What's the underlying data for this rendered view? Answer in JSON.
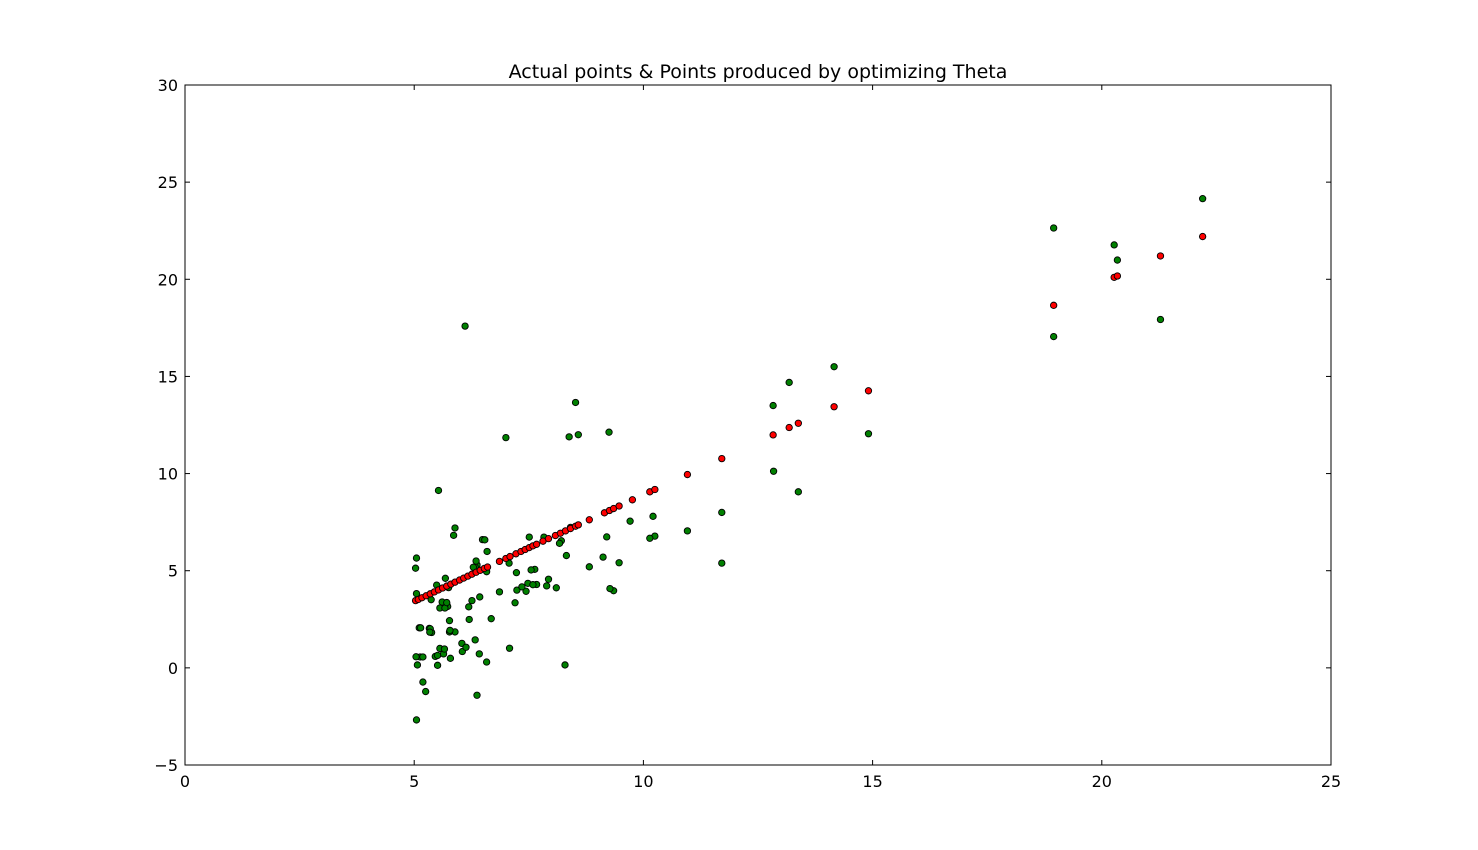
{
  "chart_data": {
    "type": "scatter",
    "title": "Actual points & Points produced by optimizing Theta",
    "xlabel": "",
    "ylabel": "",
    "xlim": [
      0,
      25
    ],
    "ylim": [
      -5,
      30
    ],
    "xticks": [
      0,
      5,
      10,
      15,
      20,
      25
    ],
    "yticks": [
      -5,
      0,
      5,
      10,
      15,
      20,
      25,
      30
    ],
    "xtick_labels": [
      "0",
      "5",
      "10",
      "15",
      "20",
      "25"
    ],
    "ytick_labels": [
      "−5",
      "0",
      "5",
      "10",
      "15",
      "20",
      "25",
      "30"
    ],
    "grid": false,
    "legend": "none",
    "series": [
      {
        "color": "#008000",
        "points": [
          [
            6.11,
            17.59
          ],
          [
            5.53,
            9.13
          ],
          [
            8.52,
            13.66
          ],
          [
            7.0,
            11.85
          ],
          [
            5.86,
            6.82
          ],
          [
            8.38,
            11.89
          ],
          [
            7.48,
            4.35
          ],
          [
            8.58,
            12.0
          ],
          [
            6.49,
            6.6
          ],
          [
            5.05,
            3.82
          ],
          [
            5.71,
            3.25
          ],
          [
            14.16,
            15.5
          ],
          [
            5.73,
            3.16
          ],
          [
            8.41,
            7.23
          ],
          [
            5.64,
            0.72
          ],
          [
            5.37,
            3.51
          ],
          [
            6.37,
            5.3
          ],
          [
            5.13,
            0.56
          ],
          [
            6.43,
            3.65
          ],
          [
            7.07,
            5.39
          ],
          [
            6.19,
            3.14
          ],
          [
            20.27,
            21.77
          ],
          [
            5.49,
            4.26
          ],
          [
            6.33,
            5.19
          ],
          [
            5.56,
            3.08
          ],
          [
            18.95,
            22.64
          ],
          [
            12.83,
            13.5
          ],
          [
            10.96,
            7.05
          ],
          [
            13.18,
            14.69
          ],
          [
            22.2,
            24.15
          ],
          [
            5.25,
            -1.22
          ],
          [
            6.59,
            5.99
          ],
          [
            9.25,
            12.13
          ],
          [
            5.89,
            1.85
          ],
          [
            8.21,
            6.54
          ],
          [
            7.93,
            4.56
          ],
          [
            8.1,
            4.12
          ],
          [
            5.61,
            3.39
          ],
          [
            12.84,
            10.12
          ],
          [
            6.35,
            5.5
          ],
          [
            5.19,
            0.56
          ],
          [
            7.44,
            3.94
          ],
          [
            9.35,
            3.97
          ],
          [
            7.23,
            4.9
          ],
          [
            5.04,
            0.57
          ],
          [
            7.63,
            5.07
          ],
          [
            6.05,
            0.84
          ],
          [
            6.42,
            0.72
          ],
          [
            5.07,
            0.15
          ],
          [
            9.2,
            6.74
          ],
          [
            5.11,
            2.06
          ],
          [
            5.77,
            1.85
          ],
          [
            6.26,
            3.46
          ],
          [
            14.91,
            12.05
          ],
          [
            8.17,
            6.41
          ],
          [
            5.33,
            2.03
          ],
          [
            5.79,
            0.49
          ],
          [
            5.19,
            -0.73
          ],
          [
            5.05,
            -2.68
          ],
          [
            6.58,
            0.3
          ],
          [
            6.04,
            1.26
          ],
          [
            6.2,
            2.49
          ],
          [
            5.46,
            0.59
          ],
          [
            6.33,
            1.44
          ],
          [
            6.37,
            -1.41
          ],
          [
            5.05,
            5.65
          ],
          [
            5.68,
            4.61
          ],
          [
            6.58,
            4.95
          ],
          [
            5.67,
            3.08
          ],
          [
            5.38,
            1.82
          ],
          [
            5.03,
            5.13
          ],
          [
            6.68,
            2.53
          ],
          [
            7.55,
            5.04
          ],
          [
            7.51,
            6.73
          ],
          [
            5.56,
            1.0
          ],
          [
            5.77,
            2.43
          ],
          [
            9.71,
            7.55
          ],
          [
            5.14,
            2.06
          ],
          [
            13.38,
            9.06
          ],
          [
            5.35,
            2.01
          ],
          [
            5.66,
            0.97
          ],
          [
            9.27,
            4.08
          ],
          [
            5.51,
            0.13
          ],
          [
            6.13,
            1.06
          ],
          [
            7.67,
            4.29
          ],
          [
            5.89,
            7.2
          ],
          [
            5.34,
            1.84
          ],
          [
            9.12,
            5.7
          ],
          [
            5.75,
            4.13
          ],
          [
            10.25,
            6.78
          ],
          [
            7.59,
            4.28
          ],
          [
            8.29,
            0.15
          ],
          [
            5.78,
            1.93
          ],
          [
            5.51,
            0.64
          ],
          [
            6.29,
            5.18
          ],
          [
            6.54,
            6.59
          ],
          [
            7.83,
            6.73
          ],
          [
            9.47,
            5.41
          ],
          [
            10.21,
            7.8
          ],
          [
            7.2,
            3.35
          ],
          [
            11.71,
            8.0
          ],
          [
            8.32,
            5.78
          ],
          [
            7.24,
            4.0
          ],
          [
            5.71,
            3.36
          ],
          [
            8.82,
            5.2
          ],
          [
            11.71,
            5.39
          ],
          [
            10.14,
            6.67
          ],
          [
            7.89,
            4.22
          ],
          [
            7.35,
            4.17
          ],
          [
            21.28,
            17.93
          ],
          [
            6.86,
            3.91
          ],
          [
            7.08,
            1.01
          ],
          [
            20.34,
            20.99
          ],
          [
            18.95,
            17.05
          ]
        ]
      },
      {
        "color": "#ff0000",
        "points": [
          [
            5.03,
            3.46
          ],
          [
            5.09,
            3.52
          ],
          [
            5.17,
            3.61
          ],
          [
            5.26,
            3.71
          ],
          [
            5.35,
            3.81
          ],
          [
            5.44,
            3.91
          ],
          [
            5.53,
            4.01
          ],
          [
            5.62,
            4.11
          ],
          [
            5.71,
            4.21
          ],
          [
            5.8,
            4.31
          ],
          [
            5.89,
            4.41
          ],
          [
            5.99,
            4.52
          ],
          [
            6.08,
            4.62
          ],
          [
            6.17,
            4.72
          ],
          [
            6.26,
            4.82
          ],
          [
            6.35,
            4.92
          ],
          [
            6.44,
            5.02
          ],
          [
            6.53,
            5.12
          ],
          [
            6.6,
            5.19
          ],
          [
            6.86,
            5.48
          ],
          [
            7.0,
            5.63
          ],
          [
            7.09,
            5.73
          ],
          [
            7.22,
            5.87
          ],
          [
            7.33,
            5.99
          ],
          [
            7.42,
            6.09
          ],
          [
            7.51,
            6.19
          ],
          [
            7.59,
            6.28
          ],
          [
            7.67,
            6.36
          ],
          [
            7.81,
            6.52
          ],
          [
            7.93,
            6.65
          ],
          [
            8.08,
            6.81
          ],
          [
            8.19,
            6.93
          ],
          [
            8.3,
            7.05
          ],
          [
            8.41,
            7.17
          ],
          [
            8.52,
            7.29
          ],
          [
            8.58,
            7.36
          ],
          [
            8.82,
            7.62
          ],
          [
            9.15,
            7.98
          ],
          [
            9.26,
            8.1
          ],
          [
            9.35,
            8.2
          ],
          [
            9.47,
            8.33
          ],
          [
            9.76,
            8.65
          ],
          [
            10.14,
            9.06
          ],
          [
            10.25,
            9.18
          ],
          [
            10.96,
            9.95
          ],
          [
            11.71,
            10.77
          ],
          [
            12.83,
            11.99
          ],
          [
            13.18,
            12.37
          ],
          [
            13.38,
            12.59
          ],
          [
            14.16,
            13.44
          ],
          [
            14.91,
            14.26
          ],
          [
            18.95,
            18.66
          ],
          [
            20.27,
            20.1
          ],
          [
            20.34,
            20.17
          ],
          [
            21.28,
            21.2
          ],
          [
            22.2,
            22.2
          ]
        ]
      }
    ]
  }
}
